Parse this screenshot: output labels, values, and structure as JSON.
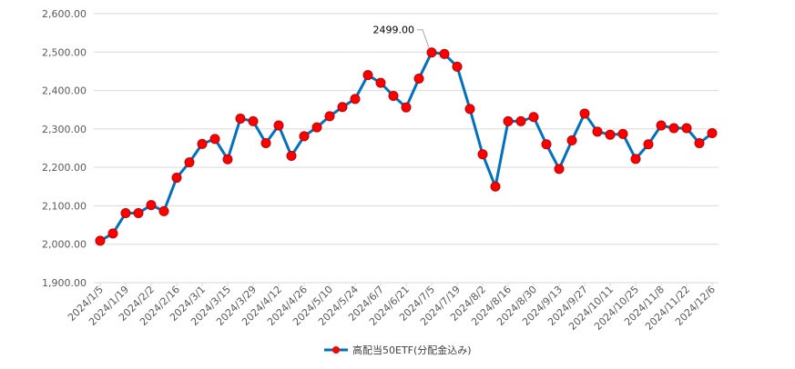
{
  "chart_data": {
    "type": "line",
    "title": "",
    "xlabel": "",
    "ylabel": "",
    "ylim": [
      1900,
      2600
    ],
    "y_tick_labels": [
      "1,900.00",
      "2,000.00",
      "2,100.00",
      "2,200.00",
      "2,300.00",
      "2,400.00",
      "2,500.00",
      "2,600.00"
    ],
    "grid": true,
    "legend_position": "bottom",
    "x": [
      "2024/1/5",
      "2024/1/12",
      "2024/1/19",
      "2024/1/26",
      "2024/2/2",
      "2024/2/9",
      "2024/2/16",
      "2024/2/23",
      "2024/3/1",
      "2024/3/8",
      "2024/3/15",
      "2024/3/22",
      "2024/3/29",
      "2024/4/5",
      "2024/4/12",
      "2024/4/19",
      "2024/4/26",
      "2024/5/3",
      "2024/5/10",
      "2024/5/17",
      "2024/5/24",
      "2024/5/31",
      "2024/6/7",
      "2024/6/14",
      "2024/6/21",
      "2024/6/28",
      "2024/7/5",
      "2024/7/12",
      "2024/7/19",
      "2024/7/26",
      "2024/8/2",
      "2024/8/9",
      "2024/8/16",
      "2024/8/23",
      "2024/8/30",
      "2024/9/6",
      "2024/9/13",
      "2024/9/20",
      "2024/9/27",
      "2024/10/4",
      "2024/10/11",
      "2024/10/18",
      "2024/10/25",
      "2024/11/1",
      "2024/11/8",
      "2024/11/15",
      "2024/11/22",
      "2024/11/29",
      "2024/12/6"
    ],
    "x_tick_labels": [
      "2024/1/5",
      "2024/1/19",
      "2024/2/2",
      "2024/2/16",
      "2024/3/1",
      "2024/3/15",
      "2024/3/29",
      "2024/4/12",
      "2024/4/26",
      "2024/5/10",
      "2024/5/24",
      "2024/6/7",
      "2024/6/21",
      "2024/7/5",
      "2024/7/19",
      "2024/8/2",
      "2024/8/16",
      "2024/8/30",
      "2024/9/13",
      "2024/9/27",
      "2024/10/11",
      "2024/10/25",
      "2024/11/8",
      "2024/11/22",
      "2024/12/6"
    ],
    "series": [
      {
        "name": "高配当50ETF(分配金込み)",
        "color": "#0070c0",
        "marker_color": "#ff0000",
        "values": [
          2009,
          2028,
          2081,
          2081,
          2102,
          2086,
          2173,
          2213,
          2261,
          2274,
          2221,
          2327,
          2320,
          2263,
          2309,
          2230,
          2281,
          2304,
          2333,
          2357,
          2378,
          2440,
          2420,
          2386,
          2356,
          2431,
          2499,
          2495,
          2462,
          2352,
          2234,
          2150,
          2320,
          2320,
          2331,
          2260,
          2196,
          2270,
          2340,
          2293,
          2285,
          2287,
          2222,
          2260,
          2309,
          2302,
          2302,
          2263,
          2289
        ]
      }
    ],
    "annotations": [
      {
        "x": "2024/7/5",
        "text": "2499.00"
      }
    ]
  }
}
